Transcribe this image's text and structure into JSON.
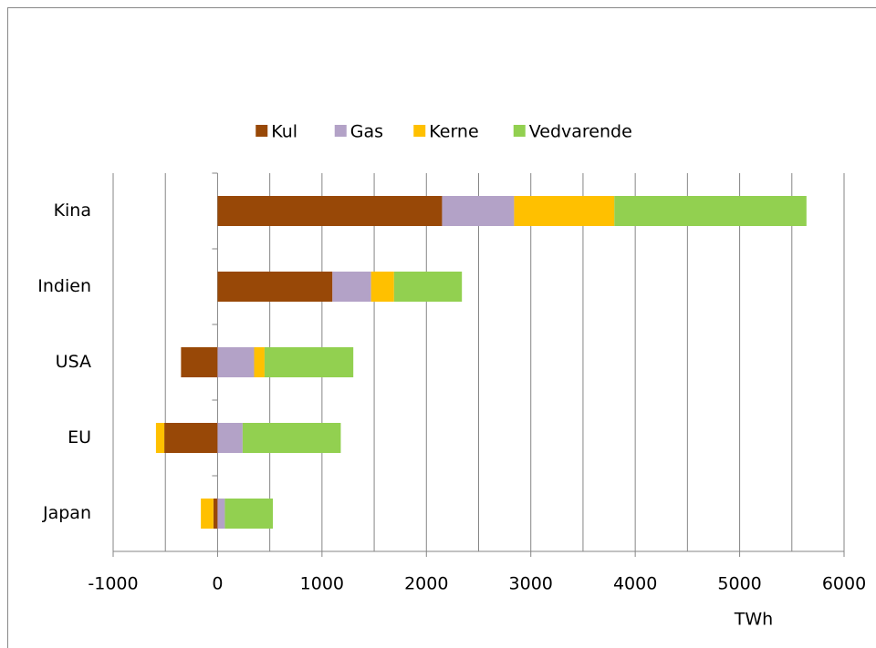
{
  "chart_data": {
    "type": "stacked-barh",
    "categories": [
      "Kina",
      "Indien",
      "USA",
      "EU",
      "Japan"
    ],
    "series": [
      {
        "name": "Kul",
        "color": "#984807",
        "values": [
          2150,
          1100,
          -350,
          -510,
          -40
        ]
      },
      {
        "name": "Gas",
        "color": "#b3a2c7",
        "values": [
          690,
          370,
          350,
          240,
          70
        ]
      },
      {
        "name": "Kerne",
        "color": "#ffc000",
        "values": [
          960,
          220,
          100,
          -80,
          -120
        ]
      },
      {
        "name": "Vedvarende",
        "color": "#92d050",
        "values": [
          1840,
          650,
          850,
          940,
          460
        ]
      }
    ],
    "xlabel": "TWh",
    "xlim": [
      -1000,
      6000
    ],
    "xticks": [
      -1000,
      0,
      1000,
      2000,
      3000,
      4000,
      5000,
      6000
    ],
    "xgrid": [
      -500,
      0,
      500,
      1000,
      1500,
      2000,
      2500,
      3000,
      3500,
      4000,
      4500,
      5000,
      5500,
      6000
    ],
    "grid": true,
    "legend": "top"
  }
}
